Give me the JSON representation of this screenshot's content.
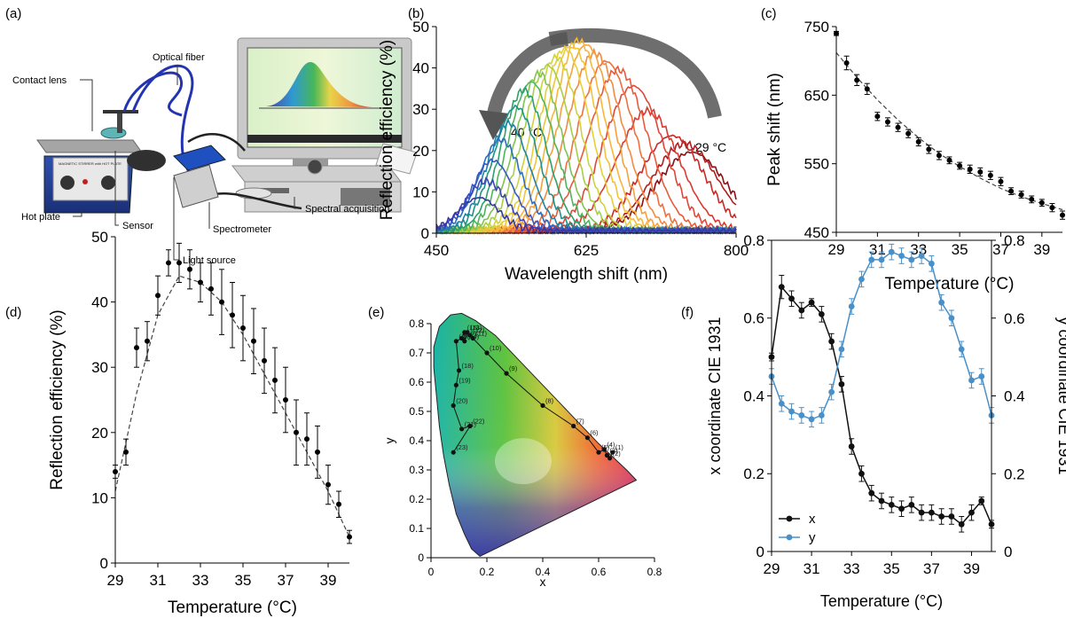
{
  "panel_labels": {
    "a": "(a)",
    "b": "(b)",
    "c": "(c)",
    "d": "(d)",
    "e": "(e)",
    "f": "(f)"
  },
  "setup": {
    "labels": {
      "contact_lens": "Contact lens",
      "optical_fiber": "Optical fiber",
      "hot_plate": "Hot plate",
      "sensor": "Sensor",
      "light_source": "Light source",
      "spectrometer": "Spectrometer",
      "spectral_acquisition": "Spectral acquisition"
    },
    "device_text": "MAGNETIC STIRRER with HOT PLATE"
  },
  "colors": {
    "black": "#111111",
    "blue": "#4a90c8",
    "curve_dash": "#444444"
  },
  "chart_data": [
    {
      "id": "b",
      "type": "line",
      "xlabel": "Wavelength shift (nm)",
      "ylabel": "Reflection efficiency (%)",
      "xlim": [
        450,
        800
      ],
      "ylim": [
        0,
        50
      ],
      "xticks": [
        450,
        625,
        800
      ],
      "yticks": [
        0,
        10,
        20,
        30,
        40,
        50
      ],
      "annotations": [
        "40 °C",
        "29 °C"
      ],
      "series": [
        {
          "peak": 748,
          "height": 19,
          "width": 40,
          "color": "#8b0f14"
        },
        {
          "peak": 740,
          "height": 21,
          "width": 38,
          "color": "#b01d1f"
        },
        {
          "peak": 725,
          "height": 23,
          "width": 37,
          "color": "#c82a27"
        },
        {
          "peak": 697,
          "height": 29,
          "width": 36,
          "color": "#d83a2e"
        },
        {
          "peak": 680,
          "height": 35,
          "width": 35,
          "color": "#e0473a"
        },
        {
          "peak": 662,
          "height": 39,
          "width": 34,
          "color": "#e85a3c"
        },
        {
          "peak": 648,
          "height": 41,
          "width": 33,
          "color": "#ef6f3f"
        },
        {
          "peak": 635,
          "height": 43,
          "width": 32,
          "color": "#f38a3f"
        },
        {
          "peak": 625,
          "height": 45,
          "width": 31,
          "color": "#f6a23c"
        },
        {
          "peak": 616,
          "height": 46,
          "width": 30,
          "color": "#f8b63a"
        },
        {
          "peak": 608,
          "height": 45,
          "width": 30,
          "color": "#f2c437"
        },
        {
          "peak": 600,
          "height": 44,
          "width": 29,
          "color": "#e6cf3a"
        },
        {
          "peak": 590,
          "height": 42,
          "width": 28,
          "color": "#cdd33d"
        },
        {
          "peak": 580,
          "height": 40,
          "width": 28,
          "color": "#a8cf46"
        },
        {
          "peak": 570,
          "height": 38,
          "width": 27,
          "color": "#7fc44f"
        },
        {
          "peak": 561,
          "height": 36,
          "width": 27,
          "color": "#4fb55a"
        },
        {
          "peak": 552,
          "height": 34,
          "width": 26,
          "color": "#2aa26a"
        },
        {
          "peak": 543,
          "height": 30,
          "width": 26,
          "color": "#1c9485"
        },
        {
          "peak": 534,
          "height": 26,
          "width": 25,
          "color": "#1d83a6"
        },
        {
          "peak": 525,
          "height": 22,
          "width": 25,
          "color": "#2b6fc0"
        },
        {
          "peak": 516,
          "height": 17,
          "width": 24,
          "color": "#3559c4"
        },
        {
          "peak": 508,
          "height": 12,
          "width": 24,
          "color": "#3c44b8"
        },
        {
          "peak": 500,
          "height": 8,
          "width": 23,
          "color": "#3a36a0"
        }
      ]
    },
    {
      "id": "c",
      "type": "scatter",
      "xlabel": "Temperature (°C)",
      "ylabel": "Peak shift (nm)",
      "xlim": [
        29,
        40
      ],
      "ylim": [
        450,
        750
      ],
      "xticks": [
        29,
        31,
        33,
        35,
        37,
        39
      ],
      "yticks": [
        450,
        550,
        650,
        750
      ],
      "x": [
        29.0,
        29.5,
        30.0,
        30.5,
        31.0,
        31.5,
        32.0,
        32.5,
        33.0,
        33.5,
        34.0,
        34.5,
        35.0,
        35.5,
        36.0,
        36.5,
        37.0,
        37.5,
        38.0,
        38.5,
        39.0,
        39.5,
        40.0
      ],
      "y": [
        740,
        697,
        672,
        659,
        619,
        611,
        603,
        594,
        582,
        571,
        562,
        555,
        547,
        542,
        538,
        533,
        524,
        510,
        505,
        498,
        493,
        486,
        475
      ],
      "yerr": [
        3,
        10,
        8,
        8,
        6,
        6,
        6,
        6,
        6,
        6,
        6,
        5,
        5,
        6,
        6,
        6,
        6,
        5,
        5,
        5,
        5,
        6,
        6
      ],
      "fit": [
        [
          29,
          712
        ],
        [
          30,
          676
        ],
        [
          31,
          643
        ],
        [
          32,
          614
        ],
        [
          33,
          588
        ],
        [
          34,
          565
        ],
        [
          35,
          546
        ],
        [
          36,
          529
        ],
        [
          37,
          514
        ],
        [
          38,
          502
        ],
        [
          39,
          492
        ],
        [
          40,
          483
        ]
      ]
    },
    {
      "id": "d",
      "type": "scatter",
      "xlabel": "Temperature (°C)",
      "ylabel": "Reflection efficiency (%)",
      "xlim": [
        29,
        40
      ],
      "ylim": [
        0,
        50
      ],
      "xticks": [
        29,
        31,
        33,
        35,
        37,
        39
      ],
      "yticks": [
        0,
        10,
        20,
        30,
        40,
        50
      ],
      "x": [
        29.0,
        29.5,
        30.0,
        30.5,
        31.0,
        31.5,
        32.0,
        32.5,
        33.0,
        33.5,
        34.0,
        34.5,
        35.0,
        35.5,
        36.0,
        36.5,
        37.0,
        37.5,
        38.0,
        38.5,
        39.0,
        39.5,
        40.0
      ],
      "y": [
        14,
        17,
        33,
        34,
        41,
        46,
        46,
        45,
        43,
        42,
        40,
        38,
        36,
        34,
        31,
        28,
        25,
        20,
        19,
        17,
        12,
        9,
        4
      ],
      "yerr": [
        1,
        2,
        3,
        3,
        3,
        2,
        3,
        3,
        3,
        4,
        5,
        5,
        5,
        5,
        5,
        5,
        5,
        5,
        4,
        4,
        3,
        2,
        1
      ],
      "fit": [
        [
          29,
          11
        ],
        [
          30,
          26
        ],
        [
          31,
          38
        ],
        [
          32,
          44
        ],
        [
          33,
          43
        ],
        [
          34,
          40
        ],
        [
          35,
          35
        ],
        [
          36,
          29
        ],
        [
          37,
          23
        ],
        [
          38,
          17
        ],
        [
          39,
          11
        ],
        [
          40,
          4
        ]
      ]
    },
    {
      "id": "e",
      "type": "scatter",
      "xlabel": "x",
      "ylabel": "y",
      "xlim": [
        0,
        0.8
      ],
      "ylim": [
        0,
        0.8
      ],
      "xticks": [
        "0",
        "0.2",
        "0.4",
        "0.6",
        "0.8"
      ],
      "yticks": [
        "0",
        "0.1",
        "0.2",
        "0.3",
        "0.4",
        "0.5",
        "0.6",
        "0.7",
        "0.8"
      ],
      "points": [
        {
          "label": "(1)",
          "x": 0.65,
          "y": 0.36
        },
        {
          "label": "(2)",
          "x": 0.64,
          "y": 0.34
        },
        {
          "label": "(3)",
          "x": 0.63,
          "y": 0.35
        },
        {
          "label": "(4)",
          "x": 0.62,
          "y": 0.37
        },
        {
          "label": "(5)",
          "x": 0.6,
          "y": 0.36
        },
        {
          "label": "(6)",
          "x": 0.56,
          "y": 0.41
        },
        {
          "label": "(7)",
          "x": 0.51,
          "y": 0.45
        },
        {
          "label": "(8)",
          "x": 0.4,
          "y": 0.52
        },
        {
          "label": "(9)",
          "x": 0.27,
          "y": 0.63
        },
        {
          "label": "(10)",
          "x": 0.2,
          "y": 0.7
        },
        {
          "label": "(11)",
          "x": 0.15,
          "y": 0.75
        },
        {
          "label": "(12)",
          "x": 0.14,
          "y": 0.76
        },
        {
          "label": "(13)",
          "x": 0.13,
          "y": 0.77
        },
        {
          "label": "(14)",
          "x": 0.12,
          "y": 0.74
        },
        {
          "label": "(15)",
          "x": 0.12,
          "y": 0.77
        },
        {
          "label": "(16)",
          "x": 0.11,
          "y": 0.75
        },
        {
          "label": "(17)",
          "x": 0.09,
          "y": 0.74
        },
        {
          "label": "(18)",
          "x": 0.1,
          "y": 0.64
        },
        {
          "label": "(19)",
          "x": 0.09,
          "y": 0.59
        },
        {
          "label": "(20)",
          "x": 0.08,
          "y": 0.52
        },
        {
          "label": "(21)",
          "x": 0.11,
          "y": 0.44
        },
        {
          "label": "(22)",
          "x": 0.14,
          "y": 0.45
        },
        {
          "label": "(23)",
          "x": 0.08,
          "y": 0.36
        }
      ]
    },
    {
      "id": "f",
      "type": "line",
      "xlabel": "Temperature (°C)",
      "ylabel": "x coordinate CIE 1931",
      "ylabel_right": "y coordinate CIE 1931",
      "xlim": [
        29,
        40
      ],
      "ylim": [
        0,
        0.8
      ],
      "xticks": [
        29,
        31,
        33,
        35,
        37,
        39
      ],
      "yticks": [
        "0",
        "0.2",
        "0.4",
        "0.6",
        "0.8"
      ],
      "legend": "bottom-left",
      "x": [
        29.0,
        29.5,
        30.0,
        30.5,
        31.0,
        31.5,
        32.0,
        32.5,
        33.0,
        33.5,
        34.0,
        34.5,
        35.0,
        35.5,
        36.0,
        36.5,
        37.0,
        37.5,
        38.0,
        38.5,
        39.0,
        39.5,
        40.0
      ],
      "series": [
        {
          "name": "x",
          "color": "#111111",
          "values": [
            0.5,
            0.68,
            0.65,
            0.62,
            0.64,
            0.61,
            0.54,
            0.43,
            0.27,
            0.2,
            0.15,
            0.13,
            0.12,
            0.11,
            0.12,
            0.1,
            0.1,
            0.09,
            0.09,
            0.07,
            0.1,
            0.13,
            0.07
          ],
          "err": [
            0.01,
            0.03,
            0.02,
            0.02,
            0.01,
            0.02,
            0.02,
            0.02,
            0.02,
            0.02,
            0.02,
            0.02,
            0.02,
            0.02,
            0.02,
            0.02,
            0.02,
            0.02,
            0.02,
            0.02,
            0.02,
            0.01,
            0.01
          ]
        },
        {
          "name": "y",
          "color": "#4a90c8",
          "values": [
            0.45,
            0.38,
            0.36,
            0.35,
            0.34,
            0.35,
            0.41,
            0.52,
            0.63,
            0.7,
            0.75,
            0.75,
            0.77,
            0.76,
            0.75,
            0.76,
            0.74,
            0.64,
            0.6,
            0.52,
            0.44,
            0.45,
            0.35
          ],
          "err": [
            0.02,
            0.02,
            0.02,
            0.02,
            0.02,
            0.02,
            0.02,
            0.02,
            0.02,
            0.02,
            0.02,
            0.02,
            0.02,
            0.02,
            0.02,
            0.02,
            0.02,
            0.02,
            0.02,
            0.02,
            0.02,
            0.02,
            0.02
          ]
        }
      ]
    }
  ]
}
